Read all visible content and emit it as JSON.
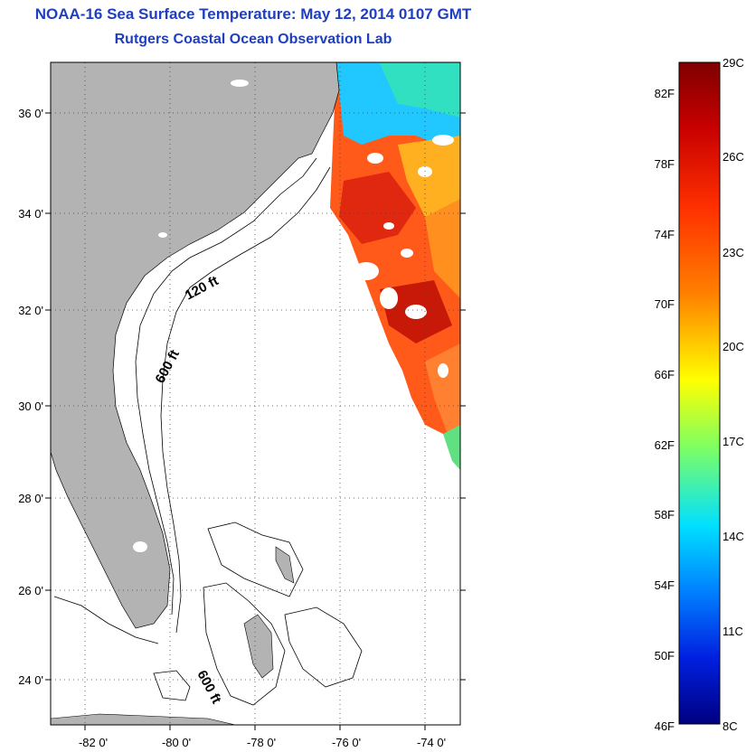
{
  "header": {
    "title": "NOAA-16 Sea Surface Temperature:  May 12, 2014 0107 GMT",
    "subtitle": "Rutgers Coastal Ocean Observation Lab"
  },
  "map": {
    "lat_labels": [
      "36 0'",
      "34 0'",
      "32 0'",
      "30 0'",
      "28 0'",
      "26 0'",
      "24 0'"
    ],
    "lon_labels": [
      "-82 0'",
      "-80 0'",
      "-78 0'",
      "-76 0'",
      "-74 0'"
    ],
    "isobath_labels": [
      "120 ft",
      "600 ft",
      "600 ft"
    ],
    "colors": {
      "land": "#b3b3b3",
      "grid": "#555555",
      "contour": "#000000"
    }
  },
  "colorbar": {
    "fahrenheit_labels": [
      "82F",
      "78F",
      "74F",
      "70F",
      "66F",
      "62F",
      "58F",
      "54F",
      "50F",
      "46F"
    ],
    "celsius_labels": [
      "29C",
      "26C",
      "23C",
      "20C",
      "17C",
      "14C",
      "11C",
      "8C"
    ],
    "scale": [
      "#800000",
      "#c00000",
      "#ff2000",
      "#ff6a00",
      "#ffb000",
      "#ffff00",
      "#a0ff40",
      "#30ffc0",
      "#00e0ff",
      "#0080ff",
      "#0020ff",
      "#0000a0",
      "#000080"
    ]
  }
}
